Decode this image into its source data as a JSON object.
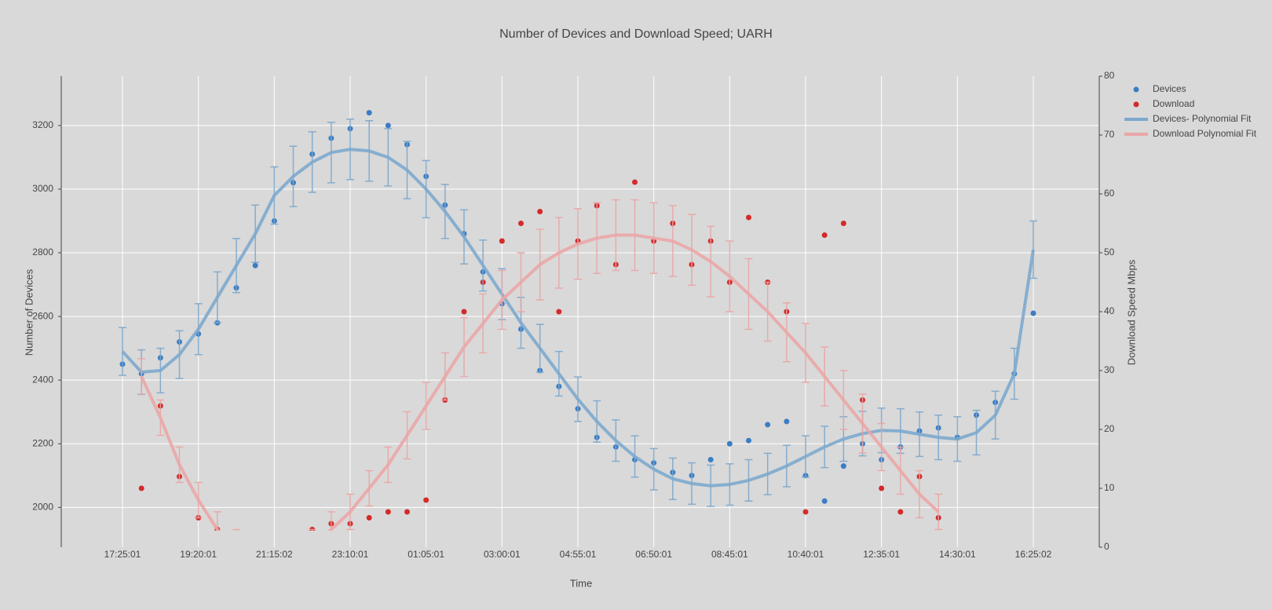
{
  "chart_data": {
    "type": "scatter",
    "title": "Number of Devices and Download Speed; UARH",
    "x_label": "Time",
    "y_label": "Number of Devices",
    "y2_label": "Download Speed Mbps",
    "categories": [
      "17:25:01",
      null,
      null,
      null,
      "19:20:01",
      null,
      null,
      null,
      "21:15:02",
      null,
      null,
      null,
      "23:10:01",
      null,
      null,
      null,
      "01:05:01",
      null,
      null,
      null,
      "03:00:01",
      null,
      null,
      null,
      "04:55:01",
      null,
      null,
      null,
      "06:50:01",
      null,
      null,
      null,
      "08:45:01",
      null,
      null,
      null,
      "10:40:01",
      null,
      null,
      null,
      "12:35:01",
      null,
      null,
      null,
      "14:30:01",
      null,
      null,
      null,
      "16:25:02"
    ],
    "ylim": [
      1875,
      3355
    ],
    "yticks": [
      2000,
      2200,
      2400,
      2600,
      2800,
      3000,
      3200
    ],
    "y2lim": [
      0,
      80
    ],
    "y2ticks": [
      0,
      10,
      20,
      30,
      40,
      50,
      60,
      70,
      80
    ],
    "grid": true,
    "series": [
      {
        "name": "Devices",
        "mode": "markers",
        "color": "#3b7dc4",
        "values": [
          2450,
          2420,
          2470,
          2520,
          2545,
          2580,
          2690,
          2760,
          2900,
          3020,
          3110,
          3160,
          3190,
          3240,
          3200,
          3140,
          3040,
          2950,
          2860,
          2740,
          2640,
          2560,
          2430,
          2380,
          2310,
          2220,
          2190,
          2150,
          2140,
          2110,
          2100,
          2150,
          2200,
          2210,
          2260,
          2270,
          2100,
          2020,
          2130,
          2200,
          2150,
          2190,
          2240,
          2250,
          2220,
          2290,
          2330,
          2420,
          2610
        ]
      },
      {
        "name": "Download",
        "mode": "markers",
        "color": "#d42a2a",
        "axis": "y2",
        "values": [
          null,
          10,
          24,
          12,
          5,
          3,
          2,
          1,
          2,
          1,
          3,
          4,
          4,
          5,
          6,
          6,
          8,
          25,
          40,
          45,
          52,
          55,
          57,
          40,
          52,
          58,
          48,
          62,
          52,
          55,
          48,
          52,
          45,
          56,
          45,
          40,
          6,
          53,
          55,
          25,
          10,
          6,
          12,
          5,
          null,
          null,
          null,
          null,
          null
        ]
      },
      {
        "name": "Devices- Polynomial Fit",
        "mode": "line",
        "color": "#7ca8cd",
        "values": [
          2490,
          2425,
          2430,
          2480,
          2560,
          2660,
          2760,
          2860,
          2980,
          3040,
          3085,
          3115,
          3125,
          3120,
          3100,
          3060,
          3000,
          2930,
          2850,
          2760,
          2670,
          2580,
          2500,
          2420,
          2340,
          2270,
          2210,
          2160,
          2120,
          2090,
          2075,
          2068,
          2072,
          2085,
          2105,
          2130,
          2160,
          2190,
          2215,
          2232,
          2242,
          2240,
          2230,
          2220,
          2215,
          2235,
          2290,
          2420,
          2810
        ],
        "errors": [
          75,
          70,
          70,
          75,
          80,
          80,
          85,
          90,
          90,
          95,
          95,
          95,
          95,
          95,
          90,
          90,
          90,
          85,
          85,
          80,
          80,
          80,
          75,
          70,
          70,
          65,
          65,
          65,
          65,
          65,
          65,
          65,
          65,
          65,
          65,
          65,
          65,
          65,
          70,
          70,
          70,
          70,
          70,
          70,
          70,
          70,
          75,
          80,
          90
        ]
      },
      {
        "name": "Download Polynomial Fit",
        "mode": "line",
        "color": "#eaa6a6",
        "axis": "y2",
        "values": [
          null,
          29,
          22,
          14,
          8,
          3,
          0,
          -2,
          -3,
          -2,
          0,
          3,
          6,
          10,
          14,
          19,
          24,
          29,
          34,
          38,
          42,
          45,
          48,
          50,
          51.5,
          52.5,
          53,
          53,
          52.5,
          52,
          50.5,
          48.5,
          46,
          43,
          40,
          36.5,
          33,
          29,
          25,
          21,
          17,
          13,
          9,
          6,
          null,
          null,
          null,
          null,
          null
        ],
        "errors": [
          null,
          3,
          3,
          3,
          3,
          3,
          3,
          3,
          3,
          3,
          3,
          3,
          3,
          3,
          3,
          4,
          4,
          4,
          5,
          5,
          5,
          5,
          6,
          6,
          6,
          6,
          6,
          6,
          6,
          6,
          6,
          6,
          6,
          6,
          5,
          5,
          5,
          5,
          5,
          5,
          4,
          4,
          4,
          3,
          null,
          null,
          null,
          null,
          null
        ]
      }
    ]
  }
}
